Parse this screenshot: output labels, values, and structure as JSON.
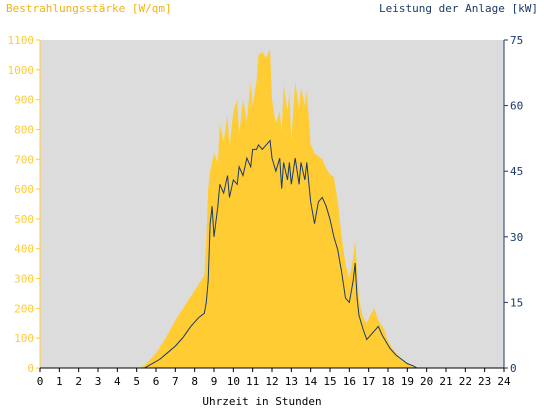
{
  "chart_data": {
    "type": "area",
    "title": "",
    "y_left_label": "Bestrahlungsstärke [W/qm]",
    "y_right_label": "Leistung der Anlage [kW]",
    "xlabel": "Uhrzeit in Stunden",
    "xlim": [
      0,
      24
    ],
    "ylim_left": [
      0,
      1100
    ],
    "ylim_right": [
      0,
      75
    ],
    "x_ticks": [
      0,
      1,
      2,
      3,
      4,
      5,
      6,
      7,
      8,
      9,
      10,
      11,
      12,
      13,
      14,
      15,
      16,
      17,
      18,
      19,
      20,
      21,
      22,
      23,
      24
    ],
    "y_left_ticks": [
      0,
      100,
      200,
      300,
      400,
      500,
      600,
      700,
      800,
      900,
      1000,
      1100
    ],
    "y_right_ticks": [
      0,
      15,
      30,
      45,
      60,
      75
    ],
    "grid": false,
    "background": "#dcdcdc",
    "series": [
      {
        "name": "Bestrahlungsstärke [W/qm]",
        "axis": "left",
        "style": "area",
        "color": "#ffcc33",
        "points": [
          [
            0,
            0
          ],
          [
            5.2,
            0
          ],
          [
            5.5,
            15
          ],
          [
            6,
            50
          ],
          [
            6.5,
            100
          ],
          [
            7,
            160
          ],
          [
            7.5,
            210
          ],
          [
            8,
            260
          ],
          [
            8.5,
            310
          ],
          [
            8.6,
            430
          ],
          [
            8.7,
            600
          ],
          [
            8.8,
            660
          ],
          [
            9,
            720
          ],
          [
            9.2,
            690
          ],
          [
            9.3,
            820
          ],
          [
            9.5,
            760
          ],
          [
            9.7,
            850
          ],
          [
            9.8,
            740
          ],
          [
            10,
            860
          ],
          [
            10.2,
            900
          ],
          [
            10.3,
            780
          ],
          [
            10.5,
            900
          ],
          [
            10.7,
            830
          ],
          [
            10.9,
            960
          ],
          [
            11,
            880
          ],
          [
            11.2,
            960
          ],
          [
            11.3,
            1050
          ],
          [
            11.5,
            1060
          ],
          [
            11.7,
            1040
          ],
          [
            11.9,
            1070
          ],
          [
            12,
            900
          ],
          [
            12.2,
            820
          ],
          [
            12.4,
            860
          ],
          [
            12.5,
            790
          ],
          [
            12.6,
            950
          ],
          [
            12.8,
            860
          ],
          [
            12.9,
            930
          ],
          [
            13,
            760
          ],
          [
            13.2,
            960
          ],
          [
            13.4,
            870
          ],
          [
            13.5,
            940
          ],
          [
            13.7,
            880
          ],
          [
            13.8,
            930
          ],
          [
            14,
            750
          ],
          [
            14.2,
            720
          ],
          [
            14.4,
            710
          ],
          [
            14.6,
            700
          ],
          [
            14.8,
            670
          ],
          [
            15,
            650
          ],
          [
            15.2,
            640
          ],
          [
            15.4,
            560
          ],
          [
            15.6,
            440
          ],
          [
            15.8,
            350
          ],
          [
            16,
            300
          ],
          [
            16.2,
            370
          ],
          [
            16.3,
            430
          ],
          [
            16.5,
            230
          ],
          [
            16.7,
            170
          ],
          [
            16.9,
            150
          ],
          [
            17.1,
            180
          ],
          [
            17.3,
            200
          ],
          [
            17.5,
            160
          ],
          [
            17.8,
            130
          ],
          [
            18,
            90
          ],
          [
            18.3,
            60
          ],
          [
            18.6,
            35
          ],
          [
            19,
            15
          ],
          [
            19.3,
            5
          ],
          [
            19.5,
            0
          ],
          [
            24,
            0
          ]
        ]
      },
      {
        "name": "Leistung der Anlage [kW]",
        "axis": "right",
        "style": "line",
        "color": "#1a3a6b",
        "points": [
          [
            0,
            0
          ],
          [
            5.4,
            0
          ],
          [
            5.8,
            1
          ],
          [
            6.2,
            2
          ],
          [
            6.6,
            3.5
          ],
          [
            7,
            5
          ],
          [
            7.4,
            7
          ],
          [
            7.8,
            9.5
          ],
          [
            8.2,
            11.5
          ],
          [
            8.5,
            12.5
          ],
          [
            8.6,
            15
          ],
          [
            8.7,
            20
          ],
          [
            8.8,
            33
          ],
          [
            8.9,
            37
          ],
          [
            9,
            30
          ],
          [
            9.2,
            37
          ],
          [
            9.3,
            42
          ],
          [
            9.5,
            40
          ],
          [
            9.7,
            44
          ],
          [
            9.8,
            39
          ],
          [
            10,
            43
          ],
          [
            10.2,
            42
          ],
          [
            10.3,
            46
          ],
          [
            10.5,
            44
          ],
          [
            10.7,
            48
          ],
          [
            10.9,
            46
          ],
          [
            11,
            50
          ],
          [
            11.2,
            50
          ],
          [
            11.3,
            51
          ],
          [
            11.5,
            50
          ],
          [
            11.7,
            51
          ],
          [
            11.9,
            52
          ],
          [
            12,
            48
          ],
          [
            12.2,
            45
          ],
          [
            12.4,
            48
          ],
          [
            12.5,
            41
          ],
          [
            12.6,
            47
          ],
          [
            12.8,
            43
          ],
          [
            12.9,
            47
          ],
          [
            13,
            42
          ],
          [
            13.2,
            48
          ],
          [
            13.4,
            42
          ],
          [
            13.5,
            47
          ],
          [
            13.7,
            43
          ],
          [
            13.8,
            47
          ],
          [
            14,
            38
          ],
          [
            14.2,
            33
          ],
          [
            14.4,
            38
          ],
          [
            14.6,
            39
          ],
          [
            14.8,
            37
          ],
          [
            15,
            34
          ],
          [
            15.2,
            30
          ],
          [
            15.4,
            27
          ],
          [
            15.6,
            22
          ],
          [
            15.8,
            16
          ],
          [
            16,
            15
          ],
          [
            16.2,
            20
          ],
          [
            16.3,
            24
          ],
          [
            16.4,
            16
          ],
          [
            16.5,
            12
          ],
          [
            16.7,
            9
          ],
          [
            16.9,
            6.5
          ],
          [
            17.1,
            7.5
          ],
          [
            17.3,
            8.5
          ],
          [
            17.5,
            9.5
          ],
          [
            17.7,
            7.5
          ],
          [
            17.9,
            6
          ],
          [
            18.1,
            4.5
          ],
          [
            18.4,
            3
          ],
          [
            18.7,
            2
          ],
          [
            19,
            1
          ],
          [
            19.3,
            0.5
          ],
          [
            19.5,
            0
          ],
          [
            24,
            0
          ]
        ]
      }
    ]
  }
}
